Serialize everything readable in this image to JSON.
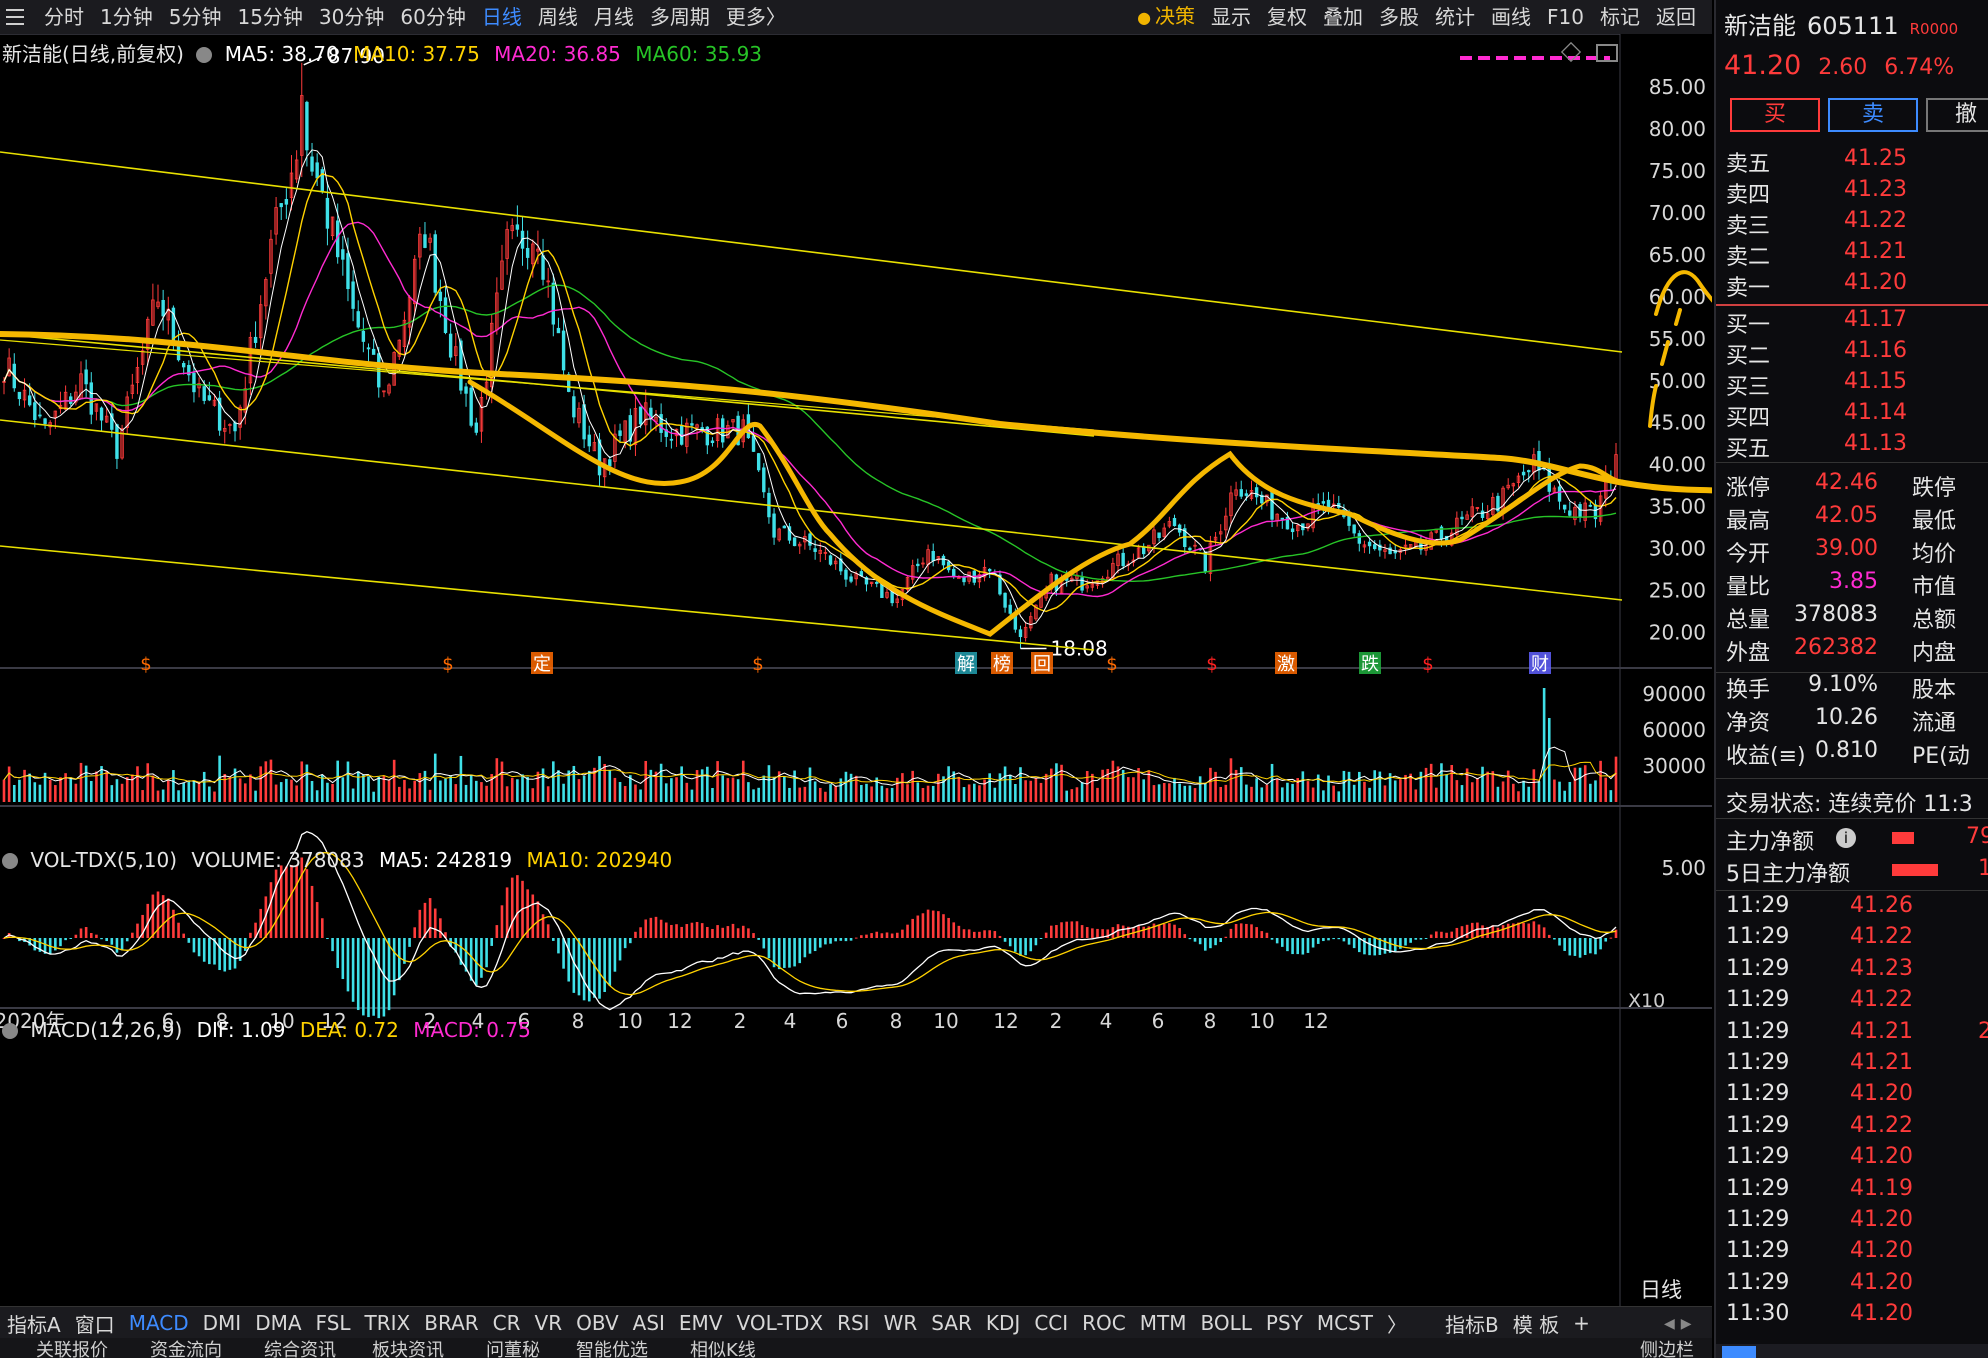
{
  "toolbar": {
    "periods": [
      "分时",
      "1分钟",
      "5分钟",
      "15分钟",
      "30分钟",
      "60分钟",
      "日线",
      "周线",
      "月线",
      "多周期",
      "更多〉"
    ],
    "active_period": "日线",
    "actions": [
      "决策",
      "显示",
      "复权",
      "叠加",
      "多股",
      "统计",
      "画线",
      "F10",
      "标记",
      "返回"
    ]
  },
  "legend": {
    "title": "新洁能(日线,前复权)",
    "ma5": "MA5: 38.70",
    "ma10": "MA10: 37.75",
    "ma20": "MA20: 36.85",
    "ma60": "MA60: 35.93",
    "high_label": "87.90",
    "low_label": "18.08"
  },
  "volume": {
    "title": "VOL-TDX(5,10)",
    "volume": "VOLUME: 378083",
    "ma5": "MA5: 242819",
    "ma10": "MA10: 202940",
    "unit": "X10"
  },
  "macd": {
    "title": "MACD(12,26,9)",
    "dif": "DIF: 1.09",
    "dea": "DEA: 0.72",
    "macd": "MACD: 0.75"
  },
  "event_markers": [
    "$",
    "$",
    "定",
    "$",
    "解",
    "榜",
    "回",
    "$",
    "$",
    "激",
    "跌",
    "$",
    "财"
  ],
  "period_label": "日线",
  "colors": {
    "up": "#ff3b3b",
    "down": "#3fe0e8",
    "ma5": "#ffffff",
    "ma10": "#ffd200",
    "ma20": "#ff2bd1",
    "ma60": "#27c427",
    "drawing": "#f5b800",
    "channel": "#e8e000",
    "active": "#3d8bff"
  },
  "chart_data": {
    "type": "candlestick",
    "price_axis_ticks": [
      "85.00",
      "80.00",
      "75.00",
      "70.00",
      "65.00",
      "60.00",
      "55.00",
      "50.00",
      "45.00",
      "40.00",
      "35.00",
      "30.00",
      "25.00",
      "20.00"
    ],
    "ylim": [
      16,
      88
    ],
    "x_tick_labels": [
      "2020年",
      "4",
      "6",
      "8",
      "10",
      "12",
      "2",
      "4",
      "6",
      "8",
      "10",
      "12",
      "2",
      "4",
      "6",
      "8",
      "10",
      "12",
      "2",
      "4",
      "6",
      "8",
      "10",
      "12"
    ],
    "volume_axis_ticks": [
      "90000",
      "60000",
      "30000"
    ],
    "macd_axis_ticks": [
      "5.00"
    ],
    "close_anchors": [
      [
        0,
        52
      ],
      [
        8,
        44
      ],
      [
        15,
        50
      ],
      [
        22,
        42
      ],
      [
        30,
        60
      ],
      [
        38,
        48
      ],
      [
        45,
        44
      ],
      [
        52,
        66
      ],
      [
        58,
        80
      ],
      [
        62,
        72
      ],
      [
        68,
        58
      ],
      [
        74,
        48
      ],
      [
        82,
        68
      ],
      [
        88,
        52
      ],
      [
        92,
        44
      ],
      [
        98,
        66
      ],
      [
        104,
        68
      ],
      [
        110,
        48
      ],
      [
        116,
        40
      ],
      [
        124,
        46
      ],
      [
        130,
        44
      ],
      [
        138,
        44
      ],
      [
        144,
        44
      ],
      [
        150,
        32
      ],
      [
        158,
        30
      ],
      [
        166,
        26
      ],
      [
        174,
        24
      ],
      [
        180,
        30
      ],
      [
        186,
        26
      ],
      [
        192,
        28
      ],
      [
        198,
        19
      ],
      [
        204,
        26
      ],
      [
        210,
        26
      ],
      [
        216,
        28
      ],
      [
        222,
        30
      ],
      [
        228,
        33
      ],
      [
        234,
        28
      ],
      [
        240,
        38
      ],
      [
        246,
        35
      ],
      [
        252,
        33
      ],
      [
        258,
        35
      ],
      [
        264,
        31
      ],
      [
        270,
        29
      ],
      [
        276,
        30
      ],
      [
        284,
        33
      ],
      [
        292,
        36
      ],
      [
        298,
        40
      ],
      [
        304,
        35
      ],
      [
        310,
        34
      ],
      [
        314,
        41
      ]
    ],
    "summary": {
      "high": 87.9,
      "low": 18.08,
      "last": 41.2
    }
  },
  "quote": {
    "name": "新洁能",
    "code": "605111",
    "badge": "R0000",
    "price": "41.20",
    "change": "2.60",
    "pct": "6.74%",
    "buy_btn": "买",
    "sell_btn": "卖",
    "cancel_btn": "撤",
    "asks": [
      {
        "label": "卖五",
        "price": "41.25"
      },
      {
        "label": "卖四",
        "price": "41.23"
      },
      {
        "label": "卖三",
        "price": "41.22"
      },
      {
        "label": "卖二",
        "price": "41.21"
      },
      {
        "label": "卖一",
        "price": "41.20"
      }
    ],
    "bids": [
      {
        "label": "买一",
        "price": "41.17"
      },
      {
        "label": "买二",
        "price": "41.16"
      },
      {
        "label": "买三",
        "price": "41.15"
      },
      {
        "label": "买四",
        "price": "41.14"
      },
      {
        "label": "买五",
        "price": "41.13"
      }
    ],
    "stats": [
      {
        "label": "涨停",
        "value": "42.46",
        "label2": "跌停"
      },
      {
        "label": "最高",
        "value": "42.05",
        "label2": "最低"
      },
      {
        "label": "今开",
        "value": "39.00",
        "label2": "均价"
      },
      {
        "label": "量比",
        "value": "3.85",
        "label2": "市值"
      },
      {
        "label": "总量",
        "value": "378083",
        "label2": "总额"
      },
      {
        "label": "外盘",
        "value": "262382",
        "label2": "内盘"
      }
    ],
    "stats2": [
      {
        "label": "换手",
        "value": "9.10%",
        "label2": "股本"
      },
      {
        "label": "净资",
        "value": "10.26",
        "label2": "流通"
      },
      {
        "label": "收益(≡)",
        "value": "0.810",
        "label2": "PE(动"
      }
    ],
    "trade_state": "交易状态: 连续竞价 11:3",
    "main_flow": "主力净额",
    "main_flow_val": "79",
    "main_flow5": "5日主力净额",
    "main_flow5_val": "1",
    "ticks": [
      {
        "time": "11:29",
        "price": "41.26",
        "vol": ""
      },
      {
        "time": "11:29",
        "price": "41.22",
        "vol": ""
      },
      {
        "time": "11:29",
        "price": "41.23",
        "vol": ""
      },
      {
        "time": "11:29",
        "price": "41.22",
        "vol": ""
      },
      {
        "time": "11:29",
        "price": "41.21",
        "vol": "2"
      },
      {
        "time": "11:29",
        "price": "41.21",
        "vol": ""
      },
      {
        "time": "11:29",
        "price": "41.20",
        "vol": ""
      },
      {
        "time": "11:29",
        "price": "41.22",
        "vol": ""
      },
      {
        "time": "11:29",
        "price": "41.20",
        "vol": ""
      },
      {
        "time": "11:29",
        "price": "41.19",
        "vol": ""
      },
      {
        "time": "11:29",
        "price": "41.20",
        "vol": ""
      },
      {
        "time": "11:29",
        "price": "41.20",
        "vol": ""
      },
      {
        "time": "11:29",
        "price": "41.20",
        "vol": ""
      },
      {
        "time": "11:30",
        "price": "41.20",
        "vol": ""
      }
    ]
  },
  "indicator_bar": [
    "指标A",
    "窗口",
    "MACD",
    "DMI",
    "DMA",
    "FSL",
    "TRIX",
    "BRAR",
    "CR",
    "VR",
    "OBV",
    "ASI",
    "EMV",
    "VOL-TDX",
    "RSI",
    "WR",
    "SAR",
    "KDJ",
    "CCI",
    "ROC",
    "MTM",
    "BOLL",
    "PSY",
    "MCST",
    "〉",
    "指标B",
    "模 板",
    "+"
  ],
  "active_indicator": "MACD",
  "status_bar": [
    "关联报价",
    "资金流向",
    "综合资讯",
    "板块资讯",
    "问董秘",
    "智能优选",
    "相似K线"
  ],
  "side_label": "侧边栏"
}
